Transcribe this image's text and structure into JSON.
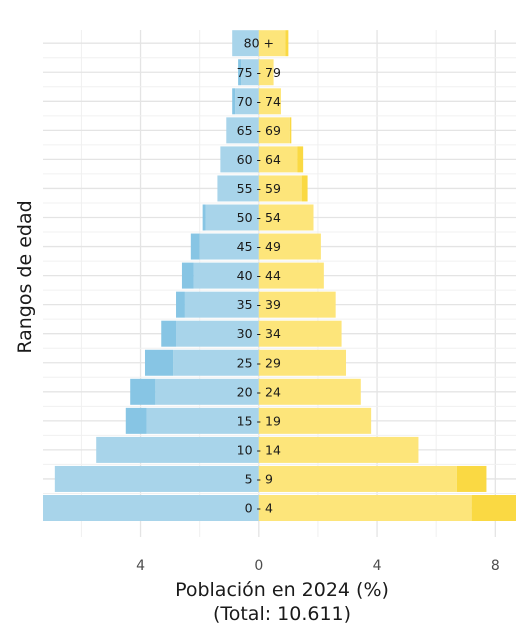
{
  "chart_data": {
    "type": "bar",
    "orientation": "horizontal",
    "subtype": "population-pyramid",
    "title": "",
    "xlabel": "Población en 2024 (%)",
    "xlabel_sub": "(Total: 10.611)",
    "ylabel": "Rangos de edad",
    "x_ticks": [
      {
        "value": -4,
        "label": "4"
      },
      {
        "value": 0,
        "label": "0"
      },
      {
        "value": 4,
        "label": "4"
      },
      {
        "value": 8,
        "label": "8"
      }
    ],
    "categories": [
      "0 - 4",
      "5 - 9",
      "10 - 14",
      "15 - 19",
      "20 - 24",
      "25 - 29",
      "30 - 34",
      "35 - 39",
      "40 - 44",
      "45 - 49",
      "50 - 54",
      "55 - 59",
      "60 - 64",
      "65 - 69",
      "70 - 74",
      "75 - 79",
      "80 +"
    ],
    "series": [
      {
        "side": "left",
        "color": "#a8d4ea",
        "values": [
          7.3,
          6.9,
          5.5,
          3.8,
          3.5,
          2.9,
          2.8,
          2.5,
          2.2,
          2.0,
          1.8,
          1.4,
          1.3,
          1.1,
          0.8,
          0.6,
          0.9
        ]
      },
      {
        "side": "left",
        "color": "#87c5e4",
        "values": [
          0.0,
          0.0,
          0.0,
          0.7,
          0.85,
          0.95,
          0.5,
          0.3,
          0.4,
          0.3,
          0.1,
          0.0,
          0.0,
          0.0,
          0.1,
          0.1,
          0.0
        ]
      },
      {
        "side": "right",
        "color": "#fde57a",
        "values": [
          7.2,
          6.7,
          5.4,
          3.8,
          3.45,
          2.95,
          2.8,
          2.6,
          2.2,
          2.1,
          1.85,
          1.45,
          1.3,
          1.05,
          0.75,
          0.5,
          0.9
        ]
      },
      {
        "side": "right",
        "color": "#fad943",
        "values": [
          1.5,
          1.0,
          0.0,
          0.0,
          0.0,
          0.0,
          0.0,
          0.0,
          0.0,
          0.0,
          0.0,
          0.2,
          0.2,
          0.05,
          0.0,
          0.0,
          0.1
        ]
      }
    ],
    "xlim": [
      -7.3,
      8.7
    ],
    "grid": true,
    "legend": "none"
  }
}
